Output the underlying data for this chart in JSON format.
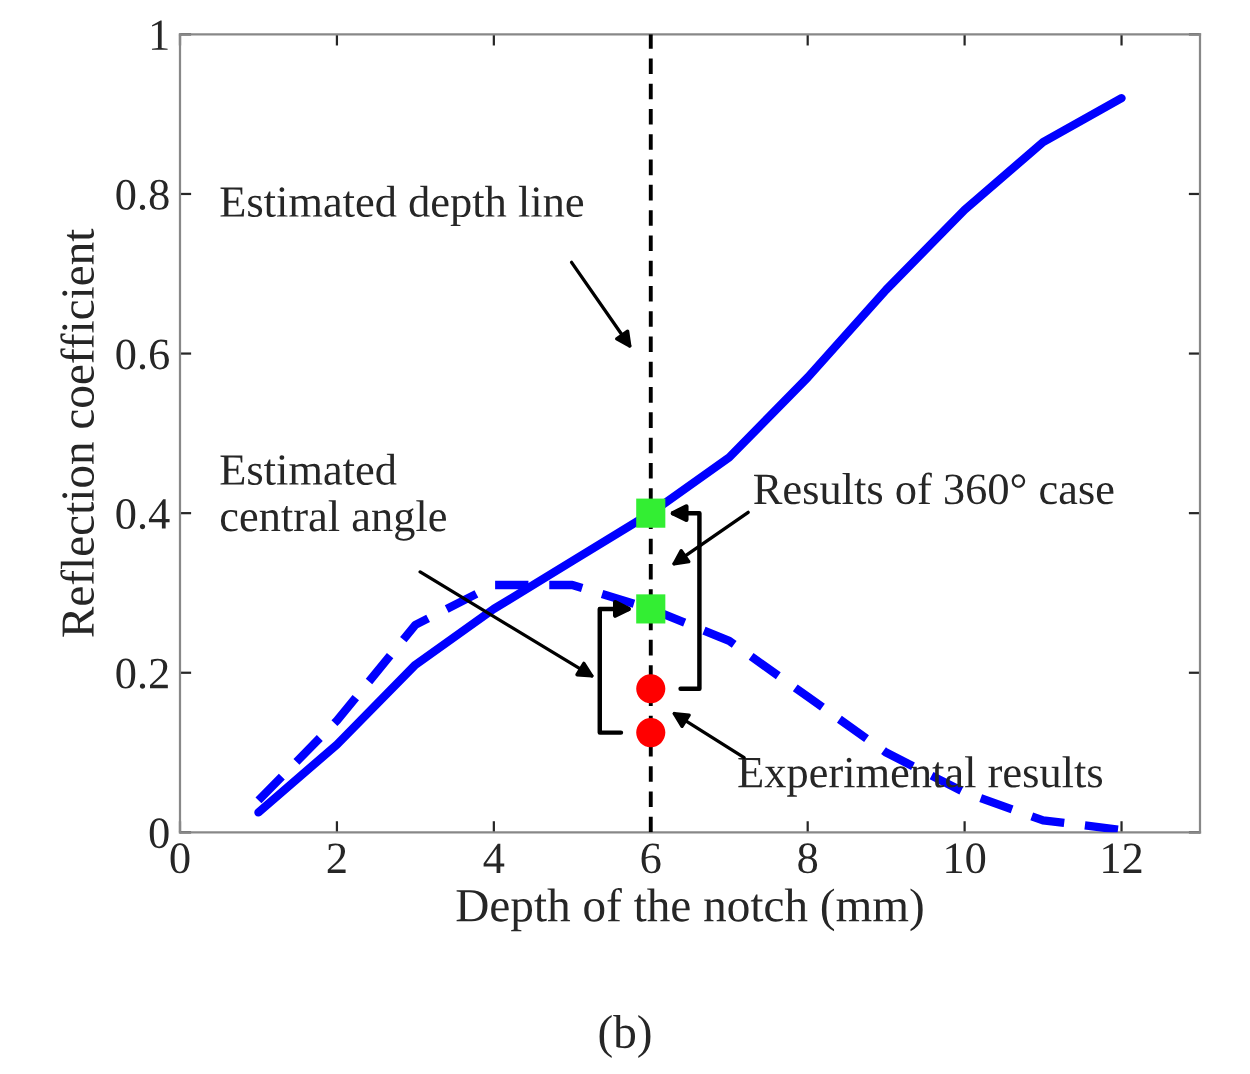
{
  "chart_data": {
    "type": "line",
    "xlabel": "Depth of the notch (mm)",
    "ylabel": "Reflection coefficient",
    "xlim": [
      0,
      13
    ],
    "ylim": [
      0,
      1
    ],
    "xticks": [
      0,
      2,
      4,
      6,
      8,
      10,
      12
    ],
    "yticks": [
      0,
      0.2,
      0.4,
      0.6,
      0.8,
      1
    ],
    "grid": false,
    "legend": false,
    "series": [
      {
        "line_style": "solid",
        "color": "#0000ff",
        "x": [
          1,
          2,
          3,
          4,
          5,
          6,
          7,
          8,
          9,
          10,
          11,
          12
        ],
        "values": [
          0.025,
          0.11,
          0.21,
          0.28,
          0.34,
          0.4,
          0.47,
          0.57,
          0.68,
          0.78,
          0.865,
          0.92
        ]
      },
      {
        "type": "line",
        "line_style": "dashed",
        "color": "#0000ff",
        "x": [
          1,
          2,
          3,
          4,
          5,
          6,
          7,
          8,
          9,
          10,
          11,
          12
        ],
        "values": [
          0.04,
          0.14,
          0.26,
          0.31,
          0.31,
          0.28,
          0.24,
          0.17,
          0.1,
          0.05,
          0.015,
          0.003
        ]
      },
      {
        "type": "scatter",
        "marker": "square",
        "color": "#33ee33",
        "x": [
          6,
          6
        ],
        "values": [
          0.4,
          0.28
        ]
      },
      {
        "type": "scatter",
        "marker": "circle",
        "color": "#ff0000",
        "x": [
          6,
          6
        ],
        "values": [
          0.18,
          0.125
        ]
      }
    ],
    "ref_lines": [
      {
        "axis": "x",
        "value": 6,
        "color": "#000000",
        "line_style": "dashed"
      }
    ],
    "annotations": [
      "Estimated depth line",
      "Estimated\ncentral angle",
      "Results of 360° case",
      "Experimental results",
      "(b)"
    ]
  }
}
